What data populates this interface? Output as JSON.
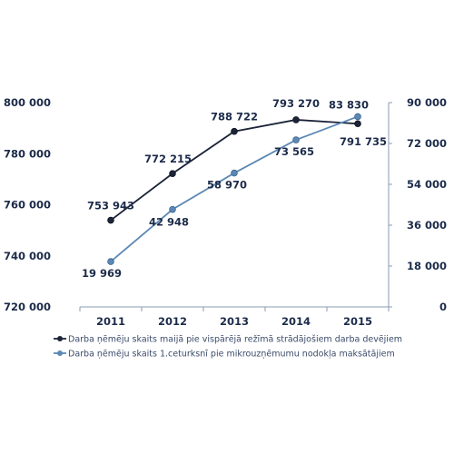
{
  "chart_data": {
    "type": "line",
    "x": [
      "2011",
      "2012",
      "2013",
      "2014",
      "2015"
    ],
    "y_left": {
      "min": 720000,
      "max": 800000,
      "step": 20000,
      "ticks": [
        "720 000",
        "740 000",
        "760 000",
        "780 000",
        "800 000"
      ]
    },
    "y_right": {
      "min": 0,
      "max": 90000,
      "step": 18000,
      "ticks": [
        "0",
        "18 000",
        "36 000",
        "54 000",
        "72 000",
        "90 000"
      ]
    },
    "series": [
      {
        "name": "Darba ņēmēju skaits maijā pie vispārējā režīmā strādājošiem darba devējiem",
        "axis": "left",
        "color": "#1c2438",
        "values": [
          753943,
          772215,
          788722,
          793270,
          791735
        ],
        "labels": [
          "753 943",
          "772 215",
          "788 722",
          "793 270",
          "791 735"
        ]
      },
      {
        "name": "Darba ņēmēju skaits 1.ceturksnī pie mikrouzņēmumu nodokļa maksātājiem",
        "axis": "right",
        "color": "#5b88b5",
        "values": [
          19969,
          42948,
          58970,
          73565,
          83830
        ],
        "labels": [
          "19 969",
          "42 948",
          "58 970",
          "73 565",
          "83 830"
        ]
      }
    ],
    "legend_position": "bottom",
    "grid": false
  }
}
